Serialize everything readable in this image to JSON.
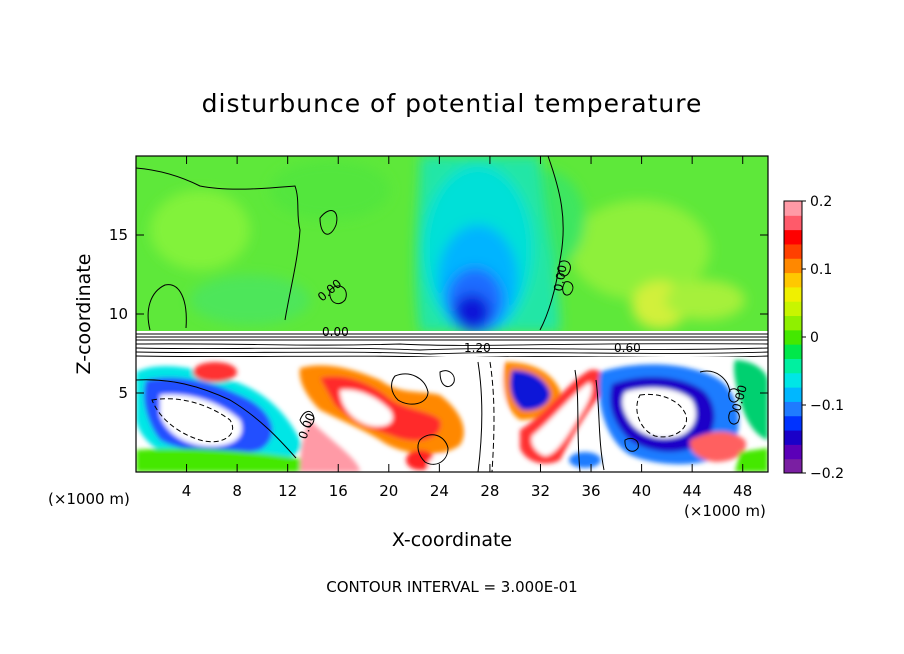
{
  "chart_data": {
    "type": "heatmap",
    "title": "disturbunce of potential temperature",
    "xlabel": "X-coordinate",
    "ylabel": "Z-coordinate",
    "x_unit_label": "(×1000 m)",
    "z_unit_label": "(×1000 m)",
    "footer": "CONTOUR INTERVAL = 3.000E-01",
    "xlim": [
      0,
      50
    ],
    "ylim": [
      0,
      20
    ],
    "xticks": [
      4,
      8,
      12,
      16,
      20,
      24,
      28,
      32,
      36,
      40,
      44,
      48
    ],
    "yticks": [
      5,
      10,
      15
    ],
    "colorbar": {
      "range": [
        -0.2,
        0.2
      ],
      "tick_values": [
        0.2,
        0.1,
        0,
        -0.1,
        -0.2
      ],
      "tick_labels": [
        "0.2",
        "0.1",
        "0",
        "−0.1",
        "−0.2"
      ],
      "colors": [
        "#7a1fa2",
        "#5b00b8",
        "#1a00c8",
        "#0033ff",
        "#1f7bff",
        "#00b7ff",
        "#00e6e6",
        "#00f0a0",
        "#00e84a",
        "#44e800",
        "#8ff000",
        "#c8f500",
        "#f0f000",
        "#ffc800",
        "#ff8800",
        "#ff4000",
        "#ff0000",
        "#ff5a6a",
        "#ff9aa6"
      ]
    },
    "contour_labels": [
      "0.00",
      "0.00",
      "0.00",
      "0.00",
      "0.00",
      "1.20",
      "0.60"
    ],
    "grid": false,
    "legend": "right"
  },
  "palette": {
    "background_field": "#5ee83a",
    "field_light": "#74f03a",
    "cyan_plume": "#00e6d8",
    "blue_core": "#1026e0",
    "white_region": "#ffffff"
  }
}
